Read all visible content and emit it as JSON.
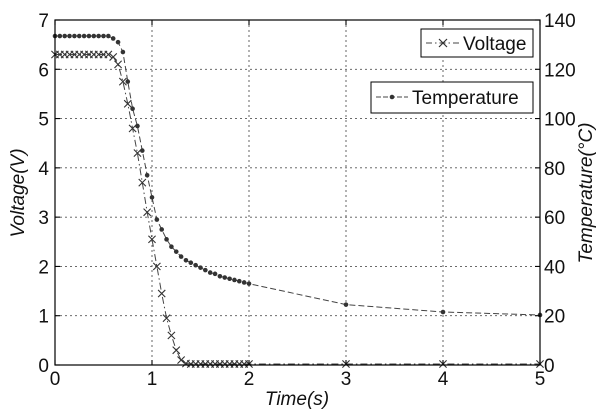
{
  "chart_data": {
    "type": "line",
    "xlabel": "Time(s)",
    "ylabel_left": "Voltage(V)",
    "ylabel_right": "Temperature(°C)",
    "xlim": [
      0,
      5
    ],
    "ylim_left": [
      0,
      7
    ],
    "ylim_right": [
      0,
      140
    ],
    "xticks": [
      "0",
      "1",
      "2",
      "3",
      "4",
      "5"
    ],
    "yticks_left": [
      "0",
      "1",
      "2",
      "3",
      "4",
      "5",
      "6",
      "7"
    ],
    "yticks_right": [
      "0",
      "20",
      "40",
      "60",
      "80",
      "100",
      "120",
      "140"
    ],
    "grid": true,
    "series": [
      {
        "name": "Voltage",
        "axis": "left",
        "marker": "x",
        "line_style": "dash-dot",
        "color": "#444444",
        "legend_position": "top-right",
        "x": [
          0,
          0.05,
          0.1,
          0.15,
          0.2,
          0.25,
          0.3,
          0.35,
          0.4,
          0.45,
          0.5,
          0.55,
          0.6,
          0.65,
          0.7,
          0.75,
          0.8,
          0.85,
          0.9,
          0.95,
          1.0,
          1.05,
          1.1,
          1.15,
          1.2,
          1.25,
          1.3,
          1.35,
          1.4,
          1.45,
          1.5,
          1.55,
          1.6,
          1.65,
          1.7,
          1.75,
          1.8,
          1.85,
          1.9,
          1.95,
          2.0,
          3.0,
          4.0,
          5.0
        ],
        "y": [
          6.3,
          6.3,
          6.3,
          6.3,
          6.3,
          6.3,
          6.3,
          6.3,
          6.3,
          6.3,
          6.3,
          6.3,
          6.25,
          6.1,
          5.75,
          5.3,
          4.8,
          4.3,
          3.7,
          3.1,
          2.55,
          2.0,
          1.45,
          0.95,
          0.6,
          0.3,
          0.1,
          0.03,
          0.02,
          0.02,
          0.02,
          0.02,
          0.02,
          0.02,
          0.02,
          0.02,
          0.02,
          0.02,
          0.02,
          0.02,
          0.02,
          0.02,
          0.02,
          0.02
        ]
      },
      {
        "name": "Temperature",
        "axis": "right",
        "marker": "dot",
        "line_style": "dash",
        "color": "#444444",
        "legend_position": "upper-right",
        "x": [
          0,
          0.05,
          0.1,
          0.15,
          0.2,
          0.25,
          0.3,
          0.35,
          0.4,
          0.45,
          0.5,
          0.55,
          0.6,
          0.65,
          0.7,
          0.75,
          0.8,
          0.85,
          0.9,
          0.95,
          1.0,
          1.05,
          1.1,
          1.15,
          1.2,
          1.25,
          1.3,
          1.35,
          1.4,
          1.45,
          1.5,
          1.55,
          1.6,
          1.65,
          1.7,
          1.75,
          1.8,
          1.85,
          1.9,
          1.95,
          2.0,
          3.0,
          4.0,
          5.0
        ],
        "y": [
          133.5,
          133.5,
          133.5,
          133.5,
          133.5,
          133.5,
          133.5,
          133.5,
          133.5,
          133.5,
          133.5,
          133.5,
          132.5,
          131,
          127,
          115,
          104,
          97,
          87,
          77,
          68,
          59,
          55,
          51,
          48,
          46,
          44,
          42.5,
          41.5,
          40.5,
          39.5,
          38.5,
          37.5,
          37,
          36,
          35.5,
          35,
          34.5,
          34,
          33.5,
          33,
          24.5,
          21.5,
          20.3
        ]
      }
    ]
  }
}
